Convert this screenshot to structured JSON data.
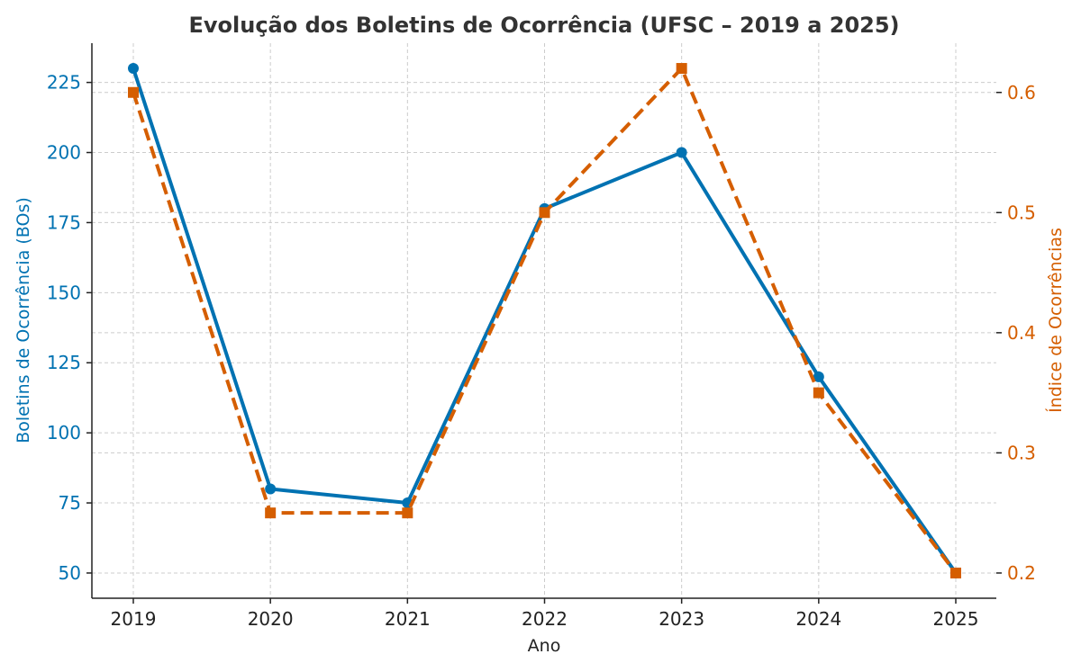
{
  "chart_data": {
    "type": "line",
    "title": "Evolução dos Boletins de Ocorrência (UFSC – 2019 a 2025)",
    "xlabel": "Ano",
    "ylabel": "Boletins de Ocorrência (BOs)",
    "y2label": "Índice de Ocorrências",
    "categories": [
      "2019",
      "2020",
      "2021",
      "2022",
      "2023",
      "2024",
      "2025"
    ],
    "ylim": [
      41,
      239
    ],
    "y2lim": [
      0.179,
      0.641
    ],
    "yticks": [
      50,
      75,
      100,
      125,
      150,
      175,
      200,
      225
    ],
    "y2ticks": [
      0.2,
      0.3,
      0.4,
      0.5,
      0.6
    ],
    "grid": true,
    "series": [
      {
        "name": "Boletins de Ocorrência (BOs)",
        "axis": "left",
        "color": "#0072B2",
        "style": "solid",
        "marker": "circle",
        "values": [
          230,
          80,
          75,
          180,
          200,
          120,
          50
        ]
      },
      {
        "name": "Índice de Ocorrências",
        "axis": "right",
        "color": "#D55E00",
        "style": "dashed",
        "marker": "square",
        "values": [
          0.6,
          0.25,
          0.25,
          0.5,
          0.62,
          0.35,
          0.2
        ]
      }
    ]
  }
}
